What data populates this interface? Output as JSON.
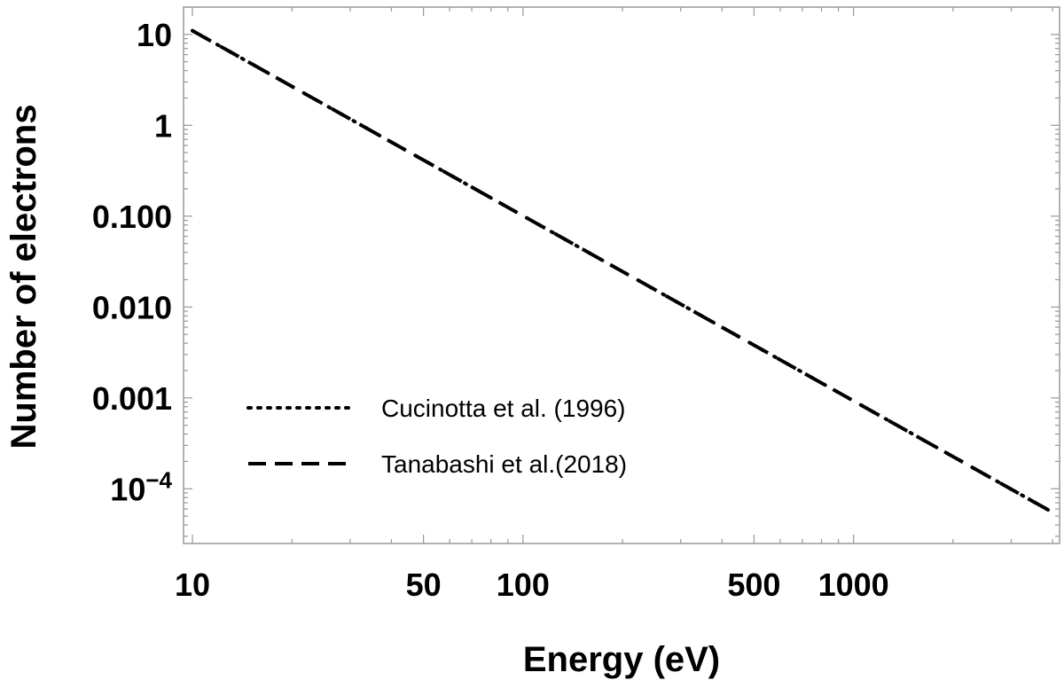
{
  "chart_data": {
    "type": "line",
    "title": "",
    "xlabel": "Energy (eV)",
    "ylabel": "Number of electrons",
    "xscale": "log",
    "yscale": "log",
    "xlim": [
      9.4,
      4200
    ],
    "ylim": [
      2.5e-05,
      20
    ],
    "grid": false,
    "legend_position": "bottom-left",
    "x_ticks": [
      {
        "value": 10,
        "label": "10"
      },
      {
        "value": 50,
        "label": "50"
      },
      {
        "value": 100,
        "label": "100"
      },
      {
        "value": 500,
        "label": "500"
      },
      {
        "value": 1000,
        "label": "1000"
      }
    ],
    "y_ticks": [
      {
        "value": 10,
        "label": "10"
      },
      {
        "value": 1,
        "label": "1"
      },
      {
        "value": 0.1,
        "label": "0.100"
      },
      {
        "value": 0.01,
        "label": "0.010"
      },
      {
        "value": 0.001,
        "label": "0.001"
      },
      {
        "value": 0.0001,
        "label_base": "10",
        "label_exp": "−4"
      }
    ],
    "series": [
      {
        "name": "Cucinotta et al. (1996)",
        "style": "dotted",
        "color": "#000000",
        "x": [
          10,
          4000
        ],
        "y": [
          11,
          5.5e-05
        ]
      },
      {
        "name": "Tanabashi et al.(2018)",
        "style": "dashed",
        "color": "#000000",
        "x": [
          10,
          4000
        ],
        "y": [
          11,
          5.5e-05
        ]
      }
    ]
  }
}
